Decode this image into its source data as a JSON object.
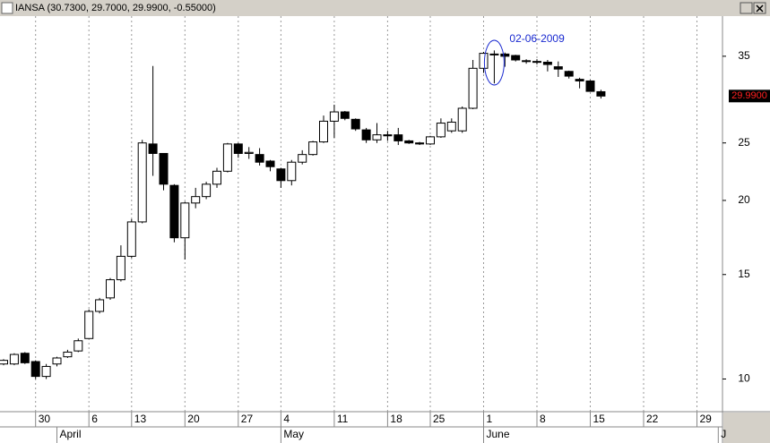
{
  "chart_data": {
    "type": "candlestick",
    "title": "IANSA (30.7300, 29.7000, 29.9900, -0.55000)",
    "categories": [
      null,
      null,
      null,
      "30",
      null,
      null,
      null,
      null,
      "6",
      null,
      null,
      null,
      "13",
      null,
      null,
      null,
      null,
      "20",
      null,
      null,
      null,
      null,
      "27",
      null,
      null,
      null,
      "4",
      null,
      null,
      null,
      null,
      "11",
      null,
      null,
      null,
      null,
      "18",
      null,
      null,
      null,
      "25",
      null,
      null,
      null,
      null,
      "1",
      null,
      null,
      null,
      null,
      "8",
      null,
      null,
      null,
      null,
      "15",
      null,
      null,
      null,
      null,
      "22",
      null,
      null,
      null,
      null,
      "29",
      null,
      null
    ],
    "months": [
      {
        "label": "April",
        "category": 5
      },
      {
        "label": "May",
        "category": 26
      },
      {
        "label": "June",
        "category": 45
      },
      {
        "label": "J",
        "category": 67
      }
    ],
    "open": [
      10.6,
      10.6,
      11.05,
      10.7,
      10.1,
      10.6,
      10.9,
      11.15,
      11.7,
      13.0,
      13.7,
      14.7,
      16.1,
      18.4,
      24.9,
      24.0,
      21.2,
      17.3,
      19.8,
      20.3,
      21.3,
      22.4,
      24.9,
      24.0,
      23.9,
      23.3,
      22.6,
      21.6,
      23.2,
      23.9,
      25.1,
      27.2,
      28.2,
      27.4,
      26.3,
      25.3,
      25.8,
      25.8,
      25.2,
      25.0,
      24.9,
      25.6,
      26.2,
      26.2,
      28.6,
      33.4,
      35.2,
      35.3,
      35.1,
      34.4,
      34.3,
      34.2,
      33.6,
      33.0,
      32.0,
      31.8,
      30.5,
      null,
      null,
      null,
      null,
      null,
      null,
      null,
      null,
      null,
      null,
      null
    ],
    "high": [
      10.8,
      11.05,
      11.1,
      10.75,
      10.6,
      10.9,
      11.2,
      11.7,
      13.1,
      13.7,
      14.8,
      16.8,
      18.6,
      25.3,
      33.7,
      24.0,
      21.3,
      19.9,
      21.0,
      21.5,
      22.7,
      25.0,
      25.0,
      24.6,
      24.5,
      23.4,
      22.7,
      23.4,
      24.3,
      25.2,
      27.8,
      29.0,
      28.3,
      27.5,
      26.5,
      27.0,
      26.2,
      26.5,
      25.3,
      25.1,
      25.7,
      27.5,
      27.5,
      28.8,
      34.5,
      35.6,
      35.8,
      35.5,
      35.2,
      34.6,
      34.6,
      34.5,
      34.3,
      33.1,
      32.2,
      31.9,
      30.73,
      null,
      null,
      null,
      null,
      null,
      null,
      null,
      null,
      null,
      null,
      null
    ],
    "low": [
      10.55,
      10.55,
      10.6,
      10.0,
      10.0,
      10.5,
      10.85,
      11.1,
      11.7,
      12.9,
      13.6,
      14.6,
      16.0,
      18.3,
      22.0,
      20.8,
      17.0,
      15.9,
      19.4,
      20.1,
      21.0,
      22.3,
      23.6,
      23.5,
      22.9,
      22.4,
      21.0,
      21.2,
      23.0,
      23.8,
      25.0,
      25.5,
      27.3,
      26.2,
      25.0,
      25.0,
      25.2,
      24.8,
      24.9,
      24.8,
      24.8,
      25.5,
      26.0,
      26.0,
      28.5,
      32.8,
      31.5,
      33.6,
      34.3,
      34.0,
      33.9,
      33.0,
      32.3,
      32.1,
      30.9,
      30.5,
      29.7,
      null,
      null,
      null,
      null,
      null,
      null,
      null,
      null,
      null,
      null,
      null
    ],
    "close": [
      10.75,
      11.0,
      10.65,
      10.1,
      10.5,
      10.85,
      11.1,
      11.6,
      13.0,
      13.6,
      14.7,
      16.1,
      18.4,
      25.0,
      24.0,
      21.3,
      17.3,
      19.8,
      20.3,
      21.3,
      22.4,
      24.9,
      24.0,
      24.1,
      23.2,
      22.8,
      21.6,
      23.2,
      23.9,
      25.1,
      27.2,
      28.2,
      27.5,
      26.4,
      25.3,
      25.8,
      25.7,
      25.2,
      25.0,
      24.9,
      25.6,
      27.0,
      27.1,
      28.6,
      33.4,
      35.4,
      35.3,
      35.0,
      34.5,
      34.3,
      34.2,
      33.9,
      33.3,
      32.4,
      31.8,
      30.54,
      29.99,
      null,
      null,
      null,
      null,
      null,
      null,
      null,
      null,
      null,
      null,
      null
    ],
    "up_color": "#ffffff",
    "down_color": "#000000",
    "ylim": [
      8.87,
      40.9
    ],
    "log_scale": true,
    "yticks": [
      10,
      15,
      20,
      25,
      35
    ],
    "last_price": {
      "value": 29.99,
      "label": "29.9900"
    },
    "annotation": {
      "text": "02-06-2009",
      "category": 46
    }
  }
}
